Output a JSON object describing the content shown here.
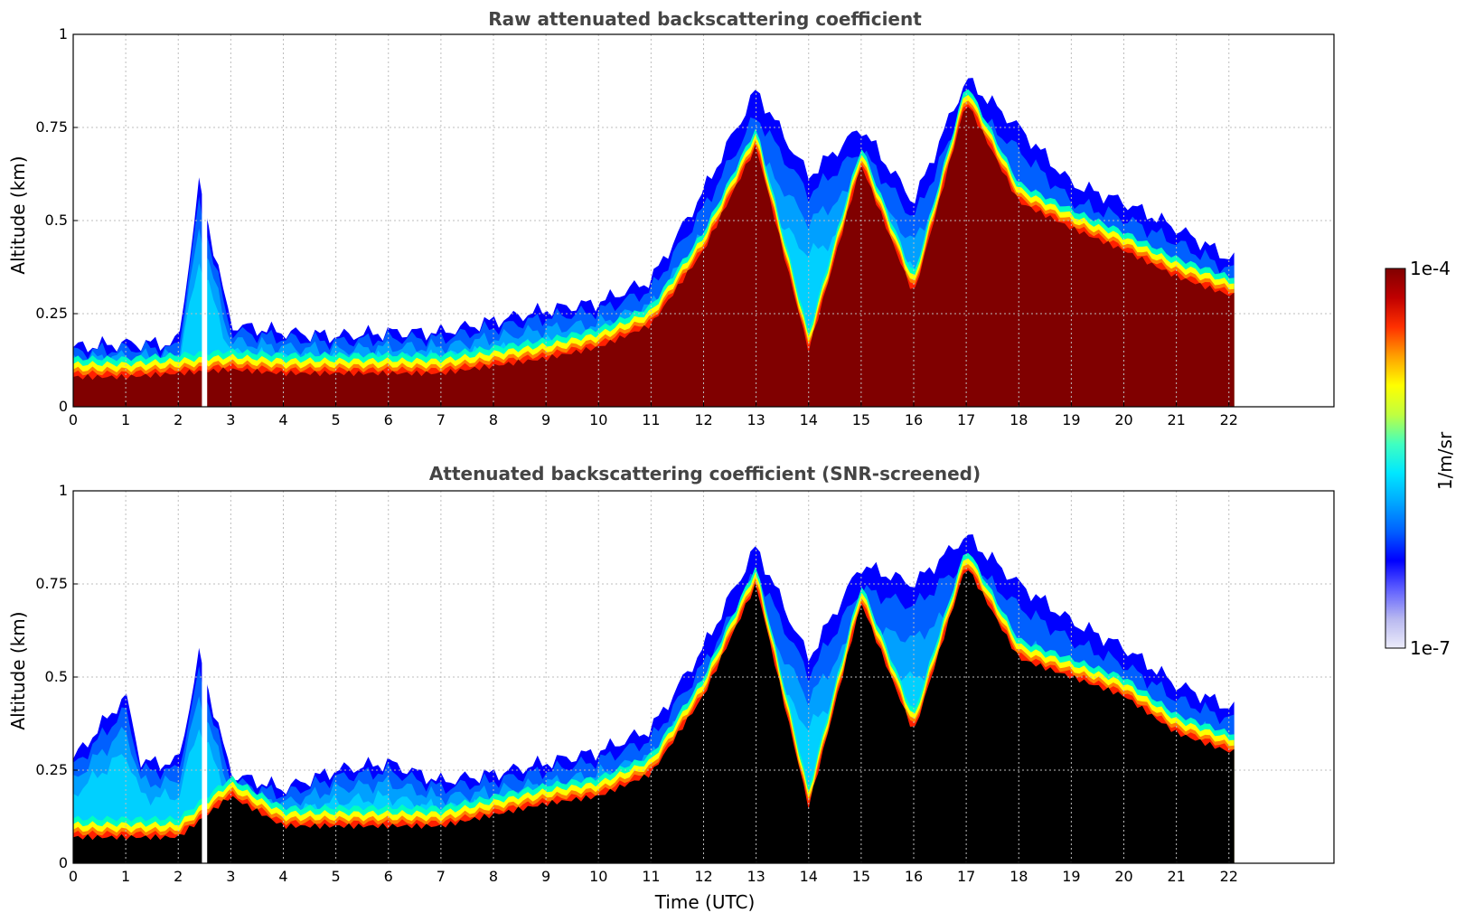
{
  "chart_data": [
    {
      "type": "heatmap",
      "title": "Raw attenuated backscattering coefficient",
      "xlabel": "",
      "ylabel": "Altitude (km)",
      "xlim": [
        0,
        24
      ],
      "ylim": [
        0,
        1
      ],
      "xticks": [
        0,
        1,
        2,
        3,
        4,
        5,
        6,
        7,
        8,
        9,
        10,
        11,
        12,
        13,
        14,
        15,
        16,
        17,
        18,
        19,
        20,
        21,
        22
      ],
      "yticks": [
        0,
        0.25,
        0.5,
        0.75,
        1
      ],
      "ytick_labels": [
        "0",
        "0.25",
        "0.5",
        "0.75",
        "1"
      ],
      "grid": true,
      "data_end_hour": 22.1,
      "gap_hours": [
        2.45,
        2.55
      ],
      "layer_top_km": [
        [
          0,
          0.16
        ],
        [
          1,
          0.17
        ],
        [
          2,
          0.17
        ],
        [
          2.4,
          0.6
        ],
        [
          3,
          0.22
        ],
        [
          4,
          0.2
        ],
        [
          5,
          0.19
        ],
        [
          6,
          0.2
        ],
        [
          7,
          0.2
        ],
        [
          8,
          0.23
        ],
        [
          9,
          0.26
        ],
        [
          10,
          0.28
        ],
        [
          11,
          0.34
        ],
        [
          12,
          0.58
        ],
        [
          13,
          0.85
        ],
        [
          14,
          0.62
        ],
        [
          15,
          0.75
        ],
        [
          16,
          0.55
        ],
        [
          17,
          0.88
        ],
        [
          18,
          0.75
        ],
        [
          19,
          0.6
        ],
        [
          20,
          0.55
        ],
        [
          21,
          0.48
        ],
        [
          22,
          0.4
        ]
      ],
      "strong_layer_km": [
        [
          0,
          0.08
        ],
        [
          1,
          0.08
        ],
        [
          2,
          0.09
        ],
        [
          3,
          0.1
        ],
        [
          4,
          0.09
        ],
        [
          5,
          0.09
        ],
        [
          6,
          0.09
        ],
        [
          7,
          0.09
        ],
        [
          8,
          0.11
        ],
        [
          9,
          0.13
        ],
        [
          10,
          0.16
        ],
        [
          11,
          0.22
        ],
        [
          12,
          0.42
        ],
        [
          13,
          0.7
        ],
        [
          14,
          0.15
        ],
        [
          15,
          0.65
        ],
        [
          16,
          0.3
        ],
        [
          17,
          0.82
        ],
        [
          18,
          0.55
        ],
        [
          19,
          0.48
        ],
        [
          20,
          0.42
        ],
        [
          21,
          0.35
        ],
        [
          22,
          0.3
        ]
      ]
    },
    {
      "type": "heatmap",
      "title": "Attenuated backscattering coefficient (SNR-screened)",
      "xlabel": "Time (UTC)",
      "ylabel": "Altitude (km)",
      "xlim": [
        0,
        24
      ],
      "ylim": [
        0,
        1
      ],
      "xticks": [
        0,
        1,
        2,
        3,
        4,
        5,
        6,
        7,
        8,
        9,
        10,
        11,
        12,
        13,
        14,
        15,
        16,
        17,
        18,
        19,
        20,
        21,
        22
      ],
      "yticks": [
        0,
        0.25,
        0.5,
        0.75,
        1
      ],
      "ytick_labels": [
        "0",
        "0.25",
        "0.5",
        "0.75",
        "1"
      ],
      "grid": true,
      "data_end_hour": 22.1,
      "gap_hours": [
        2.45,
        2.55
      ],
      "layer_top_km": [
        [
          0,
          0.28
        ],
        [
          1,
          0.45
        ],
        [
          1.3,
          0.27
        ],
        [
          2,
          0.27
        ],
        [
          2.4,
          0.56
        ],
        [
          3,
          0.24
        ],
        [
          4,
          0.2
        ],
        [
          5,
          0.25
        ],
        [
          6,
          0.27
        ],
        [
          7,
          0.22
        ],
        [
          8,
          0.24
        ],
        [
          9,
          0.27
        ],
        [
          10,
          0.3
        ],
        [
          11,
          0.36
        ],
        [
          12,
          0.58
        ],
        [
          13,
          0.85
        ],
        [
          14,
          0.55
        ],
        [
          15,
          0.8
        ],
        [
          16,
          0.75
        ],
        [
          17,
          0.88
        ],
        [
          18,
          0.75
        ],
        [
          19,
          0.65
        ],
        [
          20,
          0.58
        ],
        [
          21,
          0.48
        ],
        [
          22,
          0.42
        ]
      ],
      "saturated_top_km": [
        [
          0,
          0.07
        ],
        [
          2,
          0.07
        ],
        [
          3,
          0.18
        ],
        [
          4,
          0.1
        ],
        [
          5,
          0.1
        ],
        [
          6,
          0.1
        ],
        [
          7,
          0.1
        ],
        [
          8,
          0.13
        ],
        [
          9,
          0.16
        ],
        [
          10,
          0.18
        ],
        [
          11,
          0.24
        ],
        [
          12,
          0.45
        ],
        [
          13,
          0.75
        ],
        [
          14,
          0.15
        ],
        [
          15,
          0.7
        ],
        [
          16,
          0.35
        ],
        [
          17,
          0.8
        ],
        [
          18,
          0.55
        ],
        [
          19,
          0.5
        ],
        [
          20,
          0.45
        ],
        [
          21,
          0.35
        ],
        [
          22,
          0.3
        ]
      ]
    }
  ],
  "colorbar": {
    "label": "1/m/sr",
    "max_label": "1e-4",
    "min_label": "1e-7",
    "scale": "log",
    "colors": [
      "#ececfa",
      "#b8b8f0",
      "#6060ff",
      "#0000ff",
      "#0060ff",
      "#00a8ff",
      "#00e8ff",
      "#40ffc0",
      "#c0ff40",
      "#ffff00",
      "#ffa000",
      "#ff3000",
      "#c00000",
      "#800000"
    ]
  }
}
